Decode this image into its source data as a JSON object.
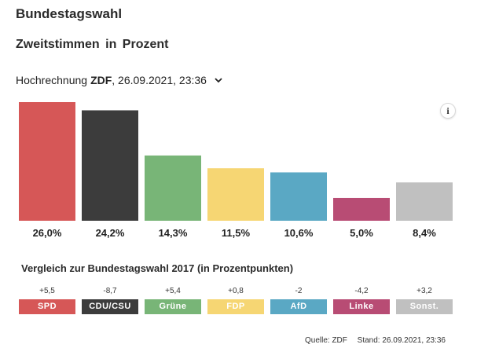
{
  "header": {
    "title": "Bundestagswahl",
    "subtitle": "Zweitstimmen in Prozent",
    "projection_prefix": "Hochrechnung",
    "projection_source": "ZDF",
    "projection_time": ", 26.09.2021, 23:36",
    "info_label": "i"
  },
  "chart_data": {
    "type": "bar",
    "categories": [
      "SPD",
      "CDU/CSU",
      "Grüne",
      "FDP",
      "AfD",
      "Linke",
      "Sonst."
    ],
    "values": [
      26.0,
      24.2,
      14.3,
      11.5,
      10.6,
      5.0,
      8.4
    ],
    "value_labels": [
      "26,0%",
      "24,2%",
      "14,3%",
      "11,5%",
      "10,6%",
      "5,0%",
      "8,4%"
    ],
    "colors": [
      "#d65757",
      "#3c3c3c",
      "#78b577",
      "#f6d673",
      "#5aa8c4",
      "#b84c74",
      "#c0c0c0"
    ],
    "ylim": [
      0,
      26.0
    ],
    "grid": false
  },
  "comparison": {
    "title": "Vergleich zur Bundestagswahl 2017 (in Prozentpunkten)",
    "items": [
      {
        "label": "SPD",
        "diff": "+5,5",
        "color": "#d65757"
      },
      {
        "label": "CDU/CSU",
        "diff": "-8,7",
        "color": "#3c3c3c"
      },
      {
        "label": "Grüne",
        "diff": "+5,4",
        "color": "#78b577"
      },
      {
        "label": "FDP",
        "diff": "+0,8",
        "color": "#f6d673"
      },
      {
        "label": "AfD",
        "diff": "-2",
        "color": "#5aa8c4"
      },
      {
        "label": "Linke",
        "diff": "-4,2",
        "color": "#b84c74"
      },
      {
        "label": "Sonst.",
        "diff": "+3,2",
        "color": "#c0c0c0"
      }
    ]
  },
  "footer": {
    "source": "Quelle: ZDF",
    "timestamp": "Stand: 26.09.2021, 23:36"
  }
}
